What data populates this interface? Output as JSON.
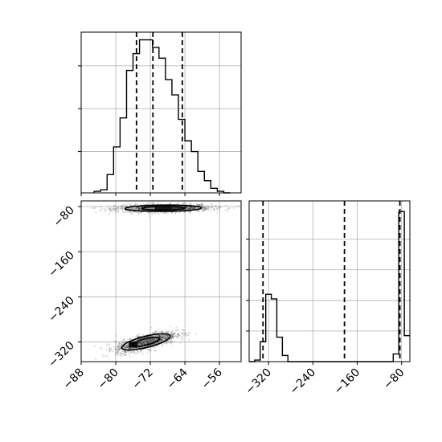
{
  "chart_data": {
    "type": "corner",
    "parameters": [
      {
        "name": "",
        "quantiles": [
          -75.2,
          -71.4,
          -64.6
        ]
      },
      {
        "name": "",
        "quantiles": [
          -330,
          -183,
          -83
        ]
      }
    ],
    "panels": [
      {
        "id": "hist-param-1",
        "type": "histogram",
        "xlim": [
          -88,
          -51
        ],
        "ylim": [
          0,
          1.05
        ],
        "bin_edges": [
          -85,
          -83.5,
          -82,
          -80.5,
          -79,
          -77.5,
          -76,
          -74.5,
          -73,
          -71.5,
          -70,
          -68.5,
          -67,
          -65.5,
          -64,
          -62.5,
          -61,
          -59.5,
          -58,
          -56.5,
          -55,
          -53.5
        ],
        "counts": [
          0.01,
          0.02,
          0.12,
          0.3,
          0.49,
          0.8,
          0.91,
          1.0,
          1.0,
          0.95,
          0.88,
          0.74,
          0.64,
          0.48,
          0.34,
          0.27,
          0.14,
          0.08,
          0.03,
          0.01,
          0.0
        ],
        "quantile_lines": [
          -75.2,
          -71.4,
          -64.6
        ],
        "x_ticks": [
          -88,
          -80,
          -72,
          -64,
          -56
        ],
        "show_tick_labels": false,
        "grid": true
      },
      {
        "id": "scatter-param-1-vs-param-2",
        "type": "2d-density",
        "xlim": [
          -88,
          -51
        ],
        "ylim": [
          -355,
          -70
        ],
        "x_ticks": [
          -88,
          -80,
          -72,
          -64,
          -56
        ],
        "y_ticks": [
          -80,
          -160,
          -240,
          -320
        ],
        "x_tick_labels": [
          "−88",
          "−80",
          "−72",
          "−64",
          "−56"
        ],
        "y_tick_labels": [
          "−80",
          "−160",
          "−240",
          "−320"
        ],
        "clusters": [
          {
            "cx": -69.0,
            "cy": -83,
            "sx": 5.5,
            "sy": 3.5,
            "corr": 0.1
          },
          {
            "cx": -73.0,
            "cy": -320,
            "sx": 3.5,
            "sy": 9.0,
            "corr": 0.7
          }
        ],
        "dense_cells": [
          {
            "x": [
              -71,
              -69
            ],
            "y": [
              -80,
              -86
            ],
            "level": 0.9
          },
          {
            "x": [
              -69,
              -67
            ],
            "y": [
              -80,
              -86
            ],
            "level": 0.9
          },
          {
            "x": [
              -67,
              -65
            ],
            "y": [
              -80,
              -86
            ],
            "level": 0.75
          },
          {
            "x": [
              -73,
              -71
            ],
            "y": [
              -80,
              -86
            ],
            "level": 0.45
          },
          {
            "x": [
              -75,
              -73
            ],
            "y": [
              -310,
              -320
            ],
            "level": 0.55
          },
          {
            "x": [
              -73,
              -71
            ],
            "y": [
              -310,
              -320
            ],
            "level": 0.6
          },
          {
            "x": [
              -77,
              -75
            ],
            "y": [
              -320,
              -330
            ],
            "level": 0.95
          }
        ],
        "grid": true
      },
      {
        "id": "hist-param-2",
        "type": "histogram",
        "xlim": [
          -355,
          -65
        ],
        "ylim": [
          0,
          1.05
        ],
        "bin_edges": [
          -355,
          -345,
          -335,
          -325,
          -315,
          -305,
          -295,
          -285,
          -275,
          -265,
          -255,
          -245,
          -235,
          -225,
          -215,
          -205,
          -195,
          -185,
          -175,
          -165,
          -155,
          -145,
          -135,
          -125,
          -115,
          -105,
          -95,
          -85,
          -75,
          -65
        ],
        "counts": [
          0.0,
          0.01,
          0.13,
          0.44,
          0.41,
          0.16,
          0.04,
          0.0,
          0.0,
          0.0,
          0.0,
          0.0,
          0.0,
          0.0,
          0.0,
          0.0,
          0.0,
          0.0,
          0.0,
          0.0,
          0.0,
          0.0,
          0.0,
          0.0,
          0.0,
          0.0,
          0.05,
          0.98,
          0.17
        ],
        "quantile_lines": [
          -330,
          -183,
          -83
        ],
        "x_ticks": [
          -320,
          -240,
          -160,
          -80
        ],
        "x_tick_labels": [
          "−320",
          "−240",
          "−160",
          "−80"
        ],
        "show_tick_labels": true,
        "grid": true
      }
    ],
    "colors": {
      "line": "#000000",
      "grid": "#b0b0b0",
      "background": "#ffffff"
    }
  }
}
